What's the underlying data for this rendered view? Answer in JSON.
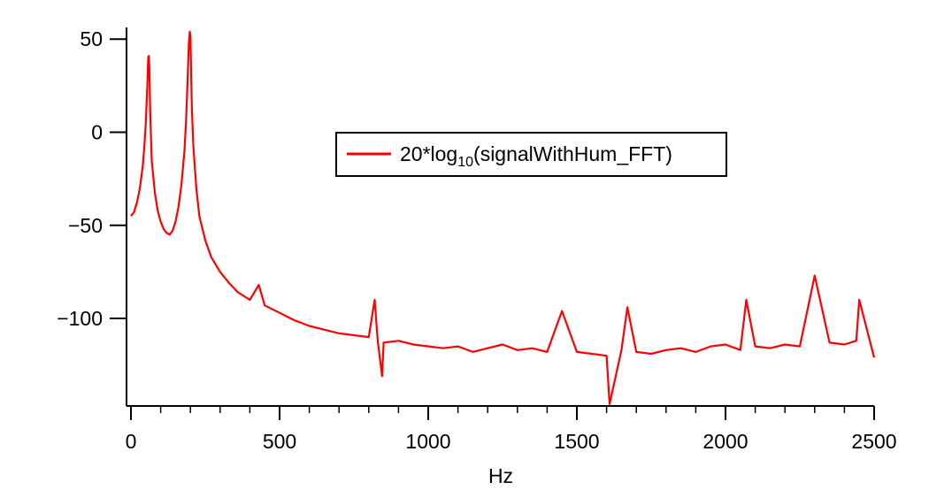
{
  "chart_data": {
    "type": "line",
    "title": "",
    "xlabel": "Hz",
    "ylabel": "",
    "xlim": [
      0,
      2500
    ],
    "ylim": [
      -147,
      52
    ],
    "x_ticks": [
      0,
      500,
      1000,
      1500,
      2000,
      2500
    ],
    "y_ticks": [
      50,
      0,
      -50,
      -100
    ],
    "x_tick_labels": [
      "0",
      "500",
      "1000",
      "1500",
      "2000",
      "2500"
    ],
    "y_tick_labels": [
      "50",
      "0",
      "−50",
      "−100"
    ],
    "grid": false,
    "legend": {
      "placement": "center-right",
      "entry_prefix": "20*log",
      "entry_subscript": "10",
      "entry_suffix": "(signalWithHum_FFT)"
    },
    "series": [
      {
        "name": "20*log10(signalWithHum_FFT)",
        "color": "#ff0000",
        "x": [
          0,
          10,
          20,
          30,
          40,
          45,
          50,
          55,
          58,
          60,
          62,
          65,
          70,
          80,
          90,
          100,
          110,
          120,
          130,
          140,
          150,
          160,
          170,
          180,
          185,
          190,
          195,
          198,
          200,
          202,
          205,
          210,
          220,
          230,
          250,
          270,
          300,
          330,
          360,
          400,
          430,
          450,
          500,
          550,
          600,
          650,
          700,
          750,
          800,
          820,
          830,
          845,
          850,
          900,
          950,
          1000,
          1050,
          1100,
          1150,
          1200,
          1250,
          1300,
          1350,
          1400,
          1450,
          1500,
          1550,
          1600,
          1610,
          1650,
          1670,
          1700,
          1750,
          1800,
          1850,
          1900,
          1950,
          2000,
          2050,
          2070,
          2100,
          2150,
          2200,
          2250,
          2300,
          2350,
          2400,
          2440,
          2450,
          2500
        ],
        "y": [
          -45,
          -43,
          -38,
          -30,
          -18,
          -8,
          5,
          25,
          40,
          41,
          35,
          10,
          -15,
          -32,
          -42,
          -48,
          -52,
          -54,
          -55,
          -53,
          -48,
          -40,
          -28,
          -10,
          5,
          25,
          48,
          54,
          52,
          35,
          12,
          -8,
          -30,
          -45,
          -58,
          -67,
          -75,
          -81,
          -86,
          -90,
          -82,
          -93,
          -97,
          -101,
          -104,
          -106,
          -108,
          -109,
          -110,
          -90,
          -112,
          -131,
          -113,
          -112,
          -114,
          -115,
          -116,
          -115,
          -118,
          -116,
          -114,
          -117,
          -116,
          -118,
          -96,
          -118,
          -119,
          -120,
          -146,
          -117,
          -94,
          -118,
          -119,
          -117,
          -116,
          -118,
          -115,
          -114,
          -117,
          -90,
          -115,
          -116,
          -114,
          -115,
          -77,
          -113,
          -114,
          -112,
          -90,
          -121
        ]
      }
    ]
  }
}
